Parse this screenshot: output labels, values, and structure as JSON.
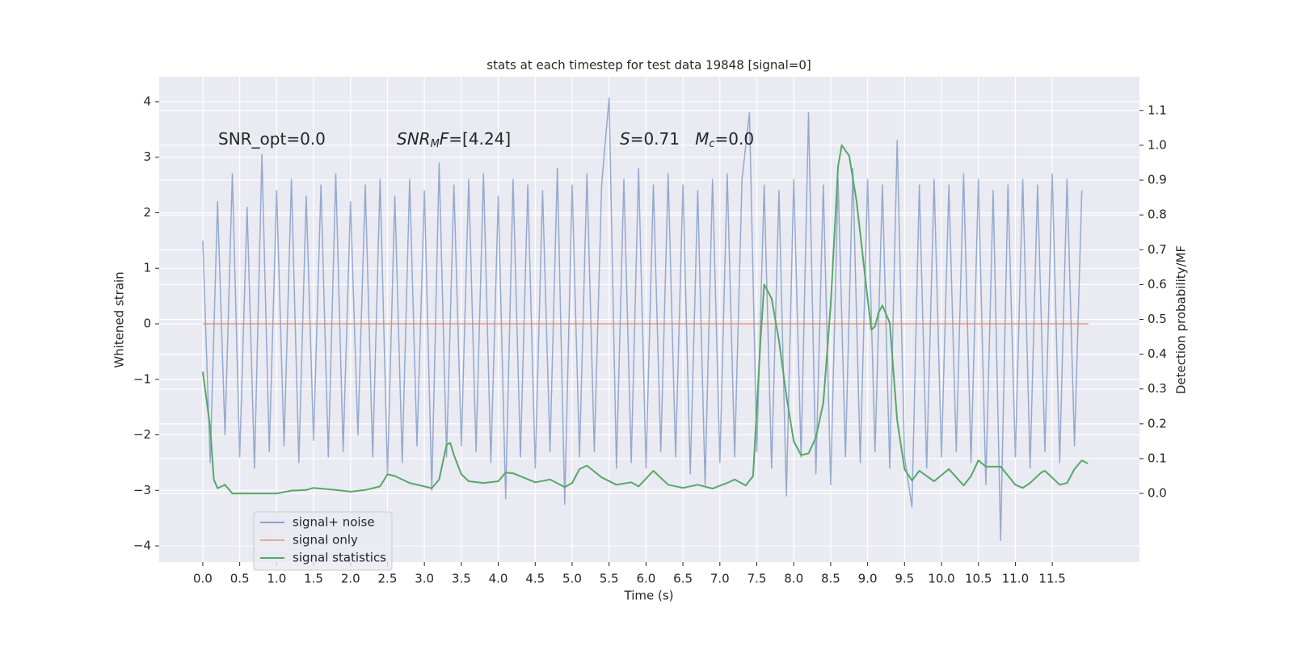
{
  "chart_data": {
    "type": "line",
    "title": "stats at each timestep for test data 19848 [signal=0]",
    "x_label": "Time (s)",
    "y_label": "Whitened strain",
    "y2_label": "Detection probability/MF",
    "annotations": [
      [
        {
          "text": "SNR_opt=0.0",
          "style": "normal"
        }
      ],
      [
        {
          "text": "SNR",
          "style": "italic"
        },
        {
          "text": "M",
          "style": "sub"
        },
        {
          "text": "F",
          "style": "italic"
        },
        {
          "text": "=[4.24]",
          "style": "normal"
        }
      ],
      [
        {
          "text": "S",
          "style": "italic"
        },
        {
          "text": "=0.71   ",
          "style": "normal"
        },
        {
          "text": "M",
          "style": "italic"
        },
        {
          "text": "c",
          "style": "sub"
        },
        {
          "text": "=0.0",
          "style": "normal"
        }
      ]
    ],
    "xlim": [
      -0.59,
      12.68
    ],
    "xticks": [
      {
        "value": 0,
        "label": "0.0"
      },
      {
        "value": 0.5,
        "label": "0.5"
      },
      {
        "value": 1,
        "label": "1.0"
      },
      {
        "value": 1.5,
        "label": "1.5"
      },
      {
        "value": 2,
        "label": "2.0"
      },
      {
        "value": 2.5,
        "label": "2.5"
      },
      {
        "value": 3,
        "label": "3.0"
      },
      {
        "value": 3.5,
        "label": "3.5"
      },
      {
        "value": 4,
        "label": "4.0"
      },
      {
        "value": 4.5,
        "label": "4.5"
      },
      {
        "value": 5,
        "label": "5.0"
      },
      {
        "value": 5.5,
        "label": "5.5"
      },
      {
        "value": 6,
        "label": "6.0"
      },
      {
        "value": 6.5,
        "label": "6.5"
      },
      {
        "value": 7,
        "label": "7.0"
      },
      {
        "value": 7.5,
        "label": "7.5"
      },
      {
        "value": 8,
        "label": "8.0"
      },
      {
        "value": 8.5,
        "label": "8.5"
      },
      {
        "value": 9,
        "label": "9.0"
      },
      {
        "value": 9.5,
        "label": "9.5"
      },
      {
        "value": 10,
        "label": "10.0"
      },
      {
        "value": 10.5,
        "label": "10.5"
      },
      {
        "value": 11,
        "label": "11.0"
      },
      {
        "value": 11.5,
        "label": "11.5"
      }
    ],
    "ylim": [
      -4.29,
      4.45
    ],
    "yticks": [
      {
        "value": -4,
        "label": "−4"
      },
      {
        "value": -3,
        "label": "−3"
      },
      {
        "value": -2,
        "label": "−2"
      },
      {
        "value": -1,
        "label": "−1"
      },
      0,
      1,
      2,
      3,
      4
    ],
    "y2lim": [
      -0.197,
      1.197
    ],
    "y2ticks": [
      {
        "value": 0,
        "label": "0.0"
      },
      {
        "value": 0.1,
        "label": "0.1"
      },
      {
        "value": 0.2,
        "label": "0.2"
      },
      {
        "value": 0.3,
        "label": "0.3"
      },
      {
        "value": 0.4,
        "label": "0.4"
      },
      {
        "value": 0.5,
        "label": "0.5"
      },
      {
        "value": 0.6,
        "label": "0.6"
      },
      {
        "value": 0.7,
        "label": "0.7"
      },
      {
        "value": 0.8,
        "label": "0.8"
      },
      {
        "value": 0.9,
        "label": "0.9"
      },
      {
        "value": 1,
        "label": "1.0"
      },
      {
        "value": 1.1,
        "label": "1.1"
      }
    ],
    "grid": true,
    "legend": "lower left",
    "series": [
      {
        "name": "signal+ noise",
        "color": "#4c72b0",
        "x": [
          0,
          0.1,
          0.2,
          0.3,
          0.4,
          0.5,
          0.6,
          0.7,
          0.8,
          0.9,
          1,
          1.1,
          1.2,
          1.3,
          1.4,
          1.5,
          1.6,
          1.7,
          1.8,
          1.9,
          2,
          2.1,
          2.2,
          2.3,
          2.4,
          2.5,
          2.6,
          2.7,
          2.8,
          2.9,
          3,
          3.1,
          3.2,
          3.3,
          3.4,
          3.5,
          3.6,
          3.7,
          3.8,
          3.9,
          4,
          4.1,
          4.2,
          4.3,
          4.4,
          4.5,
          4.6,
          4.7,
          4.8,
          4.9,
          5,
          5.1,
          5.2,
          5.3,
          5.4,
          5.5,
          5.6,
          5.7,
          5.8,
          5.9,
          6,
          6.1,
          6.2,
          6.3,
          6.4,
          6.5,
          6.6,
          6.7,
          6.8,
          6.9,
          7,
          7.1,
          7.2,
          7.3,
          7.4,
          7.5,
          7.6,
          7.7,
          7.8,
          7.9,
          8,
          8.1,
          8.2,
          8.3,
          8.4,
          8.5,
          8.6,
          8.7,
          8.8,
          8.9,
          9,
          9.1,
          9.2,
          9.3,
          9.4,
          9.5,
          9.6,
          9.7,
          9.8,
          9.9,
          10,
          10.1,
          10.2,
          10.3,
          10.4,
          10.5,
          10.6,
          10.7,
          10.8,
          10.9,
          11,
          11.1,
          11.2,
          11.3,
          11.4,
          11.5,
          11.6,
          11.7,
          11.8,
          11.9
        ],
        "values": [
          1.5,
          -2.5,
          2.2,
          -2.0,
          2.7,
          -2.4,
          2.1,
          -2.6,
          3.05,
          -2.3,
          2.4,
          -2.2,
          2.6,
          -2.5,
          2.3,
          -2.1,
          2.5,
          -2.4,
          2.7,
          -2.3,
          2.2,
          -2.0,
          2.5,
          -2.4,
          2.6,
          -2.7,
          2.3,
          -2.5,
          2.6,
          -2.2,
          2.4,
          -3.0,
          2.9,
          -2.4,
          2.5,
          -2.2,
          2.6,
          -2.3,
          2.7,
          -2.5,
          2.3,
          -3.15,
          2.6,
          -2.4,
          2.5,
          -2.6,
          2.4,
          -2.3,
          2.8,
          -3.25,
          2.5,
          -2.4,
          2.7,
          -2.3,
          2.5,
          4.07,
          -2.6,
          2.6,
          -2.5,
          2.8,
          -2.6,
          2.5,
          -2.3,
          2.7,
          -2.4,
          2.5,
          -2.7,
          2.4,
          -2.9,
          2.6,
          -2.5,
          2.7,
          -2.4,
          2.6,
          3.8,
          -2.3,
          2.5,
          -2.6,
          2.4,
          -3.1,
          2.6,
          -2.4,
          3.8,
          -2.7,
          2.5,
          -2.9,
          2.6,
          -2.4,
          2.8,
          -2.5,
          2.6,
          -2.3,
          2.5,
          -2.6,
          3.3,
          -2.4,
          -3.3,
          2.5,
          -2.6,
          2.6,
          -2.4,
          2.5,
          -2.3,
          2.7,
          -2.5,
          2.6,
          -2.9,
          2.4,
          -3.9,
          2.5,
          -2.4,
          2.6,
          -2.6,
          2.5,
          -2.3,
          2.7,
          -2.5,
          2.6,
          -2.2,
          2.4
        ]
      },
      {
        "name": "signal only",
        "color": "#dd8452",
        "x": [
          0,
          11.99
        ],
        "values": [
          0,
          0
        ]
      },
      {
        "name": "signal statistics",
        "color": "#55a868",
        "axis": "y2",
        "x": [
          0,
          0.1,
          0.15,
          0.2,
          0.3,
          0.4,
          0.5,
          0.7,
          1,
          1.2,
          1.4,
          1.5,
          1.8,
          2,
          2.2,
          2.4,
          2.5,
          2.6,
          2.8,
          3,
          3.1,
          3.2,
          3.3,
          3.35,
          3.4,
          3.5,
          3.6,
          3.8,
          4,
          4.1,
          4.2,
          4.5,
          4.7,
          4.9,
          5,
          5.1,
          5.2,
          5.4,
          5.6,
          5.8,
          5.9,
          6.1,
          6.3,
          6.5,
          6.7,
          6.9,
          7.1,
          7.2,
          7.35,
          7.45,
          7.55,
          7.6,
          7.7,
          7.8,
          7.9,
          8,
          8.1,
          8.2,
          8.3,
          8.4,
          8.5,
          8.6,
          8.65,
          8.75,
          8.85,
          9,
          9.05,
          9.1,
          9.15,
          9.2,
          9.3,
          9.4,
          9.5,
          9.6,
          9.7,
          9.9,
          10.1,
          10.3,
          10.4,
          10.5,
          10.6,
          10.8,
          11,
          11.1,
          11.2,
          11.35,
          11.4,
          11.6,
          11.7,
          11.8,
          11.9,
          11.98
        ],
        "values": [
          0.35,
          0.19,
          0.04,
          0.015,
          0.025,
          0.0,
          0.0,
          0.0,
          0.0,
          0.008,
          0.01,
          0.016,
          0.01,
          0.005,
          0.01,
          0.02,
          0.055,
          0.05,
          0.03,
          0.02,
          0.015,
          0.04,
          0.14,
          0.145,
          0.11,
          0.055,
          0.035,
          0.03,
          0.035,
          0.06,
          0.058,
          0.032,
          0.04,
          0.018,
          0.03,
          0.07,
          0.08,
          0.046,
          0.025,
          0.032,
          0.02,
          0.065,
          0.025,
          0.016,
          0.025,
          0.014,
          0.03,
          0.04,
          0.023,
          0.05,
          0.44,
          0.6,
          0.56,
          0.44,
          0.28,
          0.15,
          0.11,
          0.115,
          0.16,
          0.26,
          0.54,
          0.94,
          1.0,
          0.97,
          0.84,
          0.56,
          0.47,
          0.48,
          0.52,
          0.54,
          0.49,
          0.21,
          0.07,
          0.037,
          0.065,
          0.035,
          0.07,
          0.023,
          0.05,
          0.095,
          0.077,
          0.077,
          0.025,
          0.016,
          0.03,
          0.06,
          0.065,
          0.025,
          0.03,
          0.07,
          0.095,
          0.086
        ]
      }
    ]
  }
}
